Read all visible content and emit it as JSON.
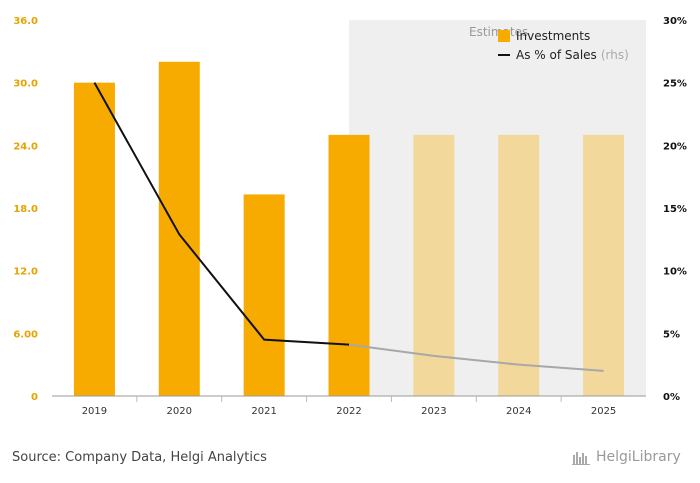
{
  "chart_data": {
    "type": "bar",
    "categories": [
      "2019",
      "2020",
      "2021",
      "2022",
      "2023",
      "2024",
      "2025"
    ],
    "estimate_from_index": 4,
    "estimate_label": "Estimates",
    "series": [
      {
        "name": "Investments",
        "type": "bar",
        "axis": "left",
        "values": [
          30.0,
          32.0,
          19.3,
          25.0,
          25.0,
          25.0,
          25.0
        ],
        "color": "#f7ab00",
        "estimate_color": "#f3d89b"
      },
      {
        "name": "As % of Sales",
        "name_suffix": "(rhs)",
        "type": "line",
        "axis": "right",
        "values": [
          25.0,
          12.9,
          4.5,
          4.1,
          3.2,
          2.5,
          2.0
        ],
        "color": "#111111",
        "estimate_color": "#a8a8a8"
      }
    ],
    "y_left": {
      "ylim": [
        0,
        36
      ],
      "ticks": [
        "0",
        "6.00",
        "12.0",
        "18.0",
        "24.0",
        "30.0",
        "36.0"
      ]
    },
    "y_right": {
      "ylim": [
        0,
        30
      ],
      "ticks": [
        "0%",
        "5%",
        "10%",
        "15%",
        "20%",
        "25%",
        "30%"
      ]
    },
    "legend_position": "top-right",
    "grid": false
  },
  "footer": {
    "source": "Source: Company Data, Helgi Analytics",
    "brand": "HelgiLibrary"
  }
}
